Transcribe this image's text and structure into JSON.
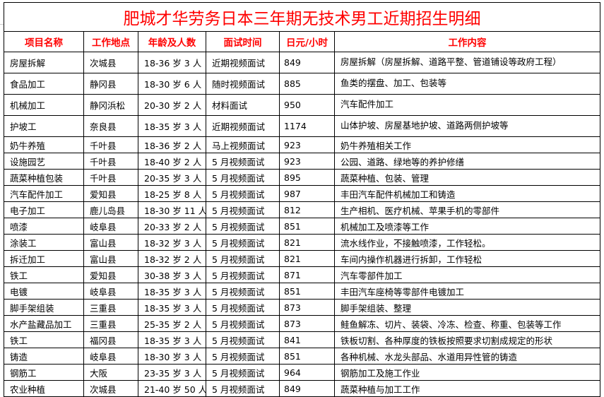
{
  "title": "肥城才华劳务日本三年期无技术男工近期招生明细",
  "headers": [
    "项目名称",
    "工作地点",
    "年龄及人数",
    "面试时间",
    "日元/小时",
    "工作内容"
  ],
  "rows": [
    [
      "房屋拆解",
      "次城县",
      "18-36 岁 3 人",
      "近期视频面试",
      "849",
      "房屋拆解（房屋拆解、道路平整、管道铺设等政府工程）"
    ],
    [
      "食品加工",
      "静冈县",
      "18-30 岁 6 人",
      "随时视频面试",
      "885",
      "鱼类的摆盘、加工、包装等"
    ],
    [
      "机械加工",
      "静冈浜松",
      "20-30 岁 2 人",
      "材料面试",
      "950",
      "汽车配件加工"
    ],
    [
      "护坡工",
      "奈良县",
      "18-35 岁 3 人",
      "近期视频面试",
      "1174",
      "山体护坡、房屋基地护坡、道路两侧护坡等"
    ],
    [
      "奶牛养殖",
      "千叶县",
      "18-36 岁 2 人",
      "马上视频面试",
      "923",
      "奶牛养殖相关工作"
    ],
    [
      "设施园艺",
      "千叶县",
      "18-40 岁 2 人",
      "5 月视频面试",
      "923",
      "公园、道路、绿地等的养护修缮"
    ],
    [
      "蔬菜种植包装",
      "千叶县",
      "20-35 岁 3 人",
      "5 月视频面试",
      "895",
      "蔬菜种植、包装、管理"
    ],
    [
      "汽车配件加工",
      "爱知县",
      "18-25 岁 8 人",
      "5 月视频面试",
      "987",
      "丰田汽车配件机械加工和铸造"
    ],
    [
      "电子加工",
      "鹿儿岛县",
      "18-30 岁 11 人",
      "5 月视频面试",
      "812",
      "生产相机、医疗机械、苹果手机的零部件"
    ],
    [
      "喷漆",
      "岐阜县",
      "20-33 岁 2 人",
      "5 月视频面试",
      "851",
      "机械加工及喷漆等工作"
    ],
    [
      "涂装工",
      "富山县",
      "18-32 岁 3 人",
      "5 月视频面试",
      "821",
      "流水线作业，不接触喷漆，工作轻松。"
    ],
    [
      "拆迁加工",
      "富山县",
      "18-32 岁 2 人",
      "5 月视频面试",
      "821",
      "车间内操作机器进行拆卸，工作轻松"
    ],
    [
      "铁工",
      "爱知县",
      "30-38 岁 3 人",
      "5 月视频面试",
      "871",
      "汽车零部件加工"
    ],
    [
      "电镀",
      "岐阜县",
      "18-35 岁 3 人",
      "5 月视频面试",
      "851",
      "丰田汽车座椅等零部件电镀加工"
    ],
    [
      "脚手架组装",
      "三重县",
      "18-35 岁 3 人",
      "5 月视频面试",
      "873",
      "脚手架组装、整理"
    ],
    [
      "水产盐藏品加工",
      "三重县",
      "25-35 岁 2 人",
      "5 月视频面试",
      "873",
      "鲑鱼解冻、切片、装袋、冷冻、检查、称重、包装等工作"
    ],
    [
      "铁工",
      "福冈县",
      "18-35 岁 3 人",
      "5 月视频面试",
      "841",
      "铁板切割、各种厚度的铁板按照要求切割成规定的形状"
    ],
    [
      "铸造",
      "岐阜县",
      "18-30 岁 3 人",
      "5 月视频面试",
      "851",
      "各种机械、水龙头部品、水道用异性管的铸造"
    ],
    [
      "钢筋工",
      "大阪",
      "23-35 岁 3 人",
      "5 月视频面试",
      "964",
      "钢筋加工及施工作业"
    ],
    [
      "农业种植",
      "次城县",
      "21-40 岁 50 人",
      "5 月视频面试",
      "849",
      "蔬菜种植与加工工作"
    ]
  ]
}
